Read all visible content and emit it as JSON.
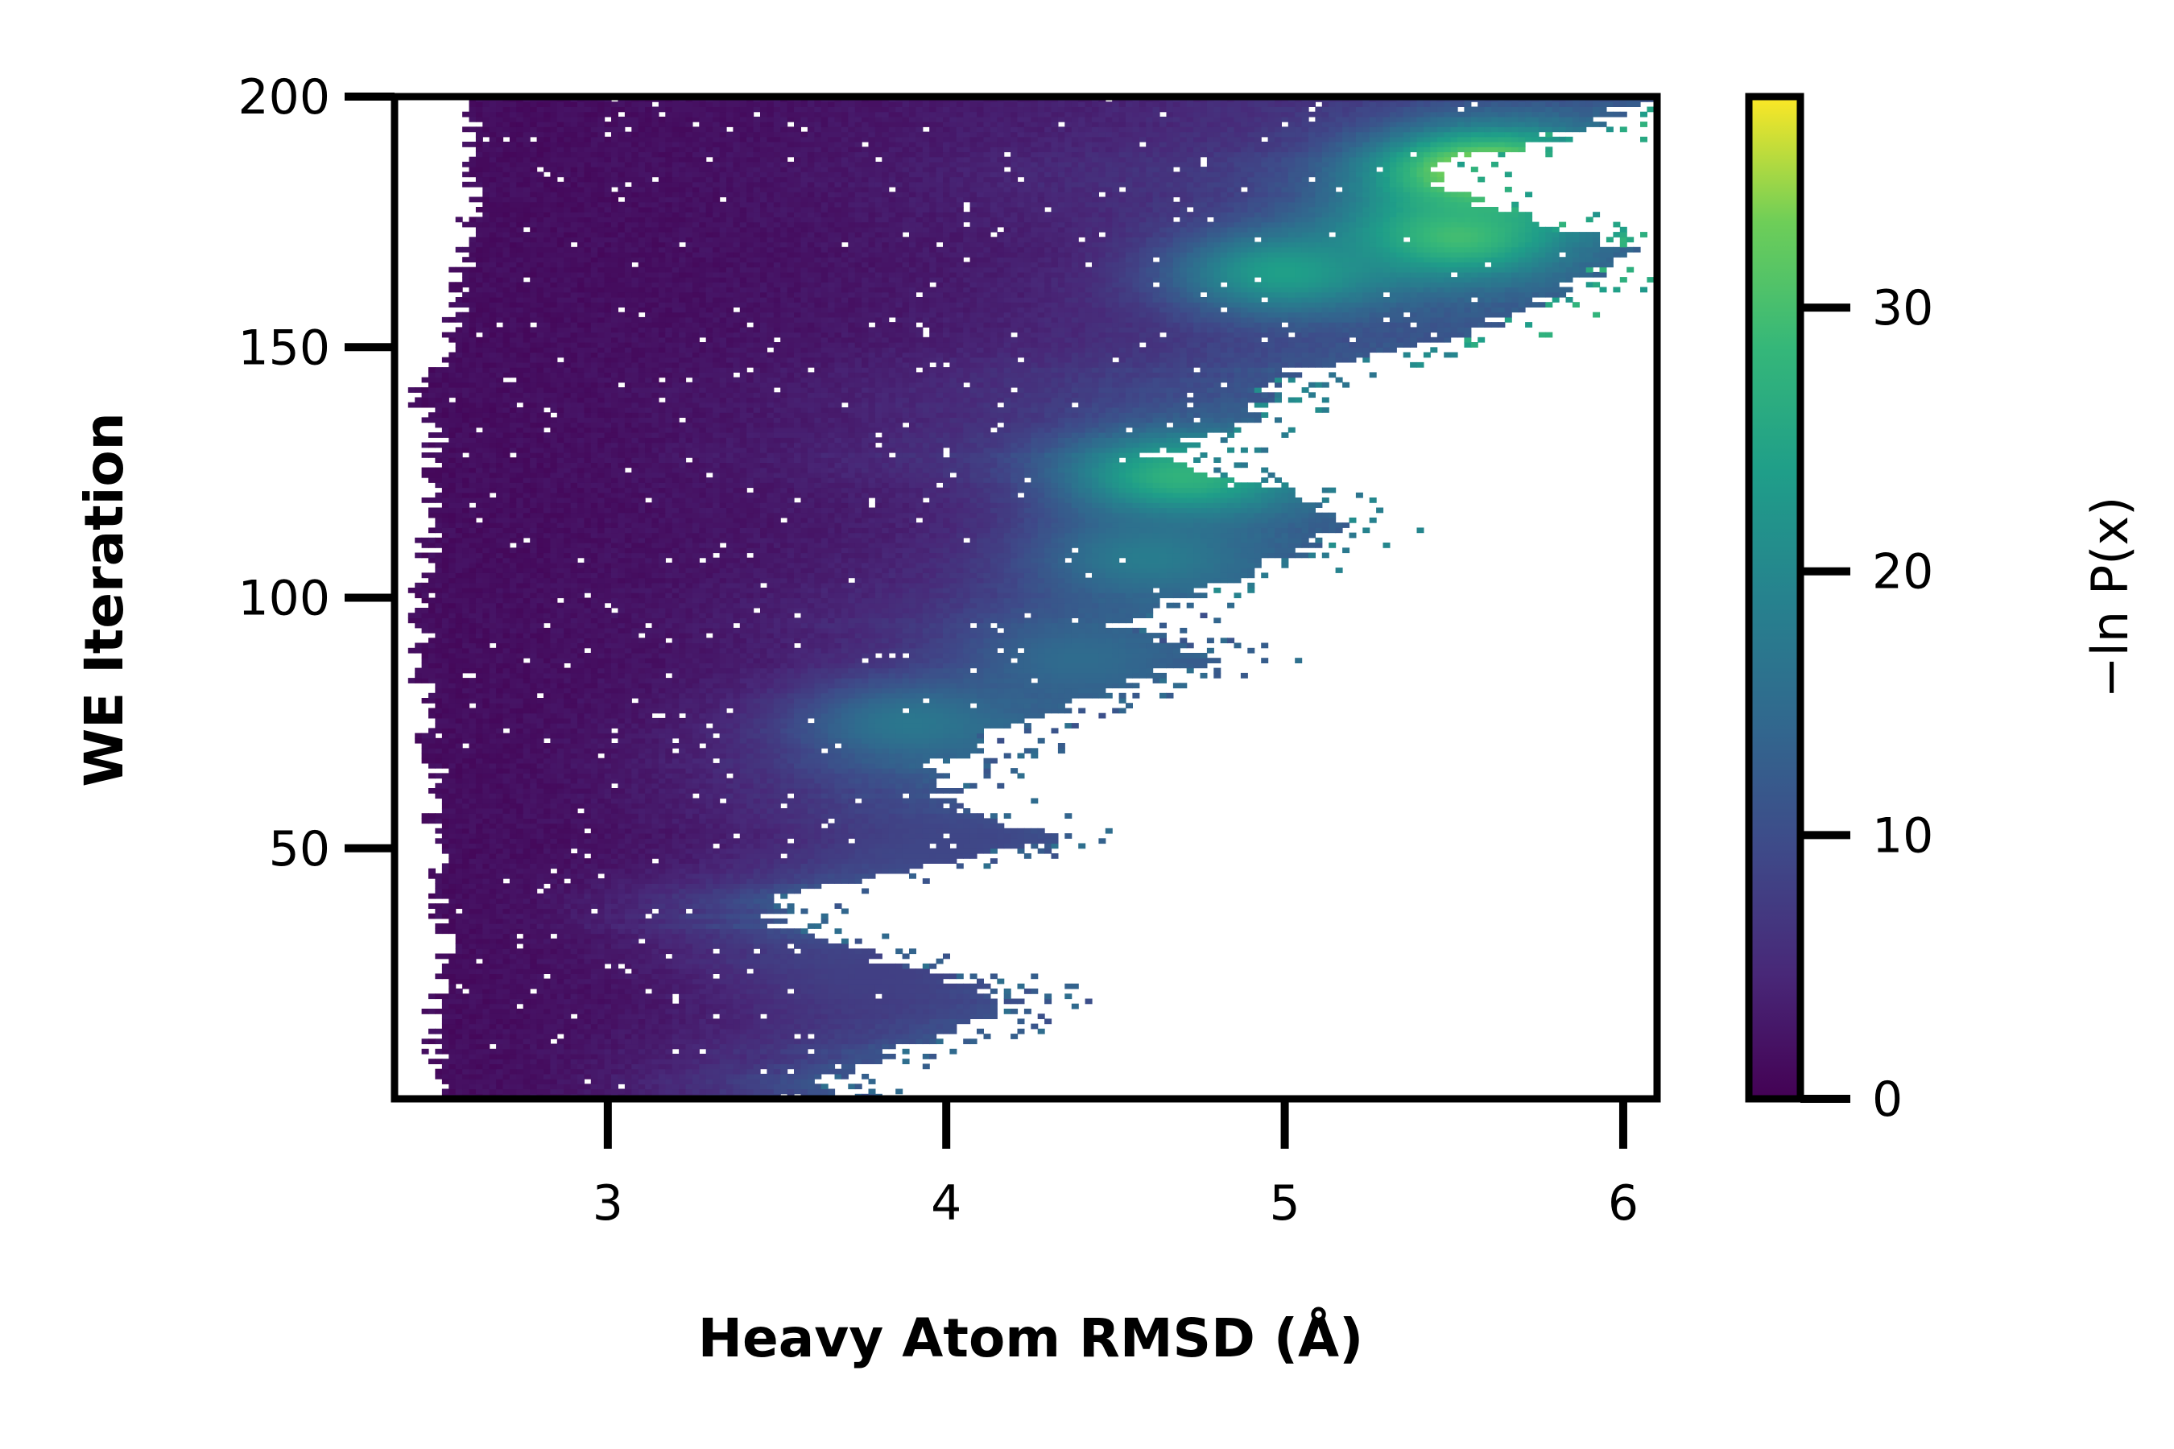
{
  "chart_data": {
    "type": "heatmap",
    "title": "",
    "xlabel": "Heavy Atom RMSD (Å)",
    "ylabel": "WE Iteration",
    "xlim": [
      2.37,
      6.1
    ],
    "ylim": [
      0,
      200
    ],
    "xticks": [
      3,
      4,
      5,
      6
    ],
    "xtick_labels": [
      "3",
      "4",
      "5",
      "6"
    ],
    "yticks": [
      50,
      100,
      150,
      200
    ],
    "ytick_labels": [
      "50",
      "100",
      "150",
      "200"
    ],
    "grid": false,
    "colormap": "viridis",
    "colorbar": {
      "label": "−ln P(x)",
      "range": [
        0,
        38
      ],
      "ticks": [
        0,
        10,
        20,
        30
      ],
      "tick_labels": [
        "0",
        "10",
        "20",
        "30"
      ]
    },
    "x_bin_width": 0.02,
    "y_bin_height": 1,
    "low_region_edge": [
      [
        0,
        2.55
      ],
      [
        10,
        2.48
      ],
      [
        20,
        2.5
      ],
      [
        30,
        2.52
      ],
      [
        40,
        2.5
      ],
      [
        60,
        2.48
      ],
      [
        80,
        2.45
      ],
      [
        100,
        2.45
      ],
      [
        120,
        2.48
      ],
      [
        135,
        2.5
      ],
      [
        140,
        2.4
      ],
      [
        145,
        2.5
      ],
      [
        160,
        2.55
      ],
      [
        180,
        2.6
      ],
      [
        200,
        2.6
      ]
    ],
    "high_region_edge": [
      [
        0,
        3.6
      ],
      [
        5,
        3.7
      ],
      [
        12,
        3.95
      ],
      [
        20,
        4.2
      ],
      [
        28,
        3.8
      ],
      [
        35,
        3.5
      ],
      [
        40,
        3.45
      ],
      [
        45,
        3.9
      ],
      [
        52,
        4.3
      ],
      [
        58,
        4.0
      ],
      [
        65,
        3.95
      ],
      [
        72,
        4.1
      ],
      [
        80,
        4.4
      ],
      [
        88,
        4.8
      ],
      [
        95,
        4.5
      ],
      [
        105,
        4.9
      ],
      [
        115,
        5.2
      ],
      [
        122,
        5.0
      ],
      [
        128,
        4.6
      ],
      [
        135,
        4.9
      ],
      [
        145,
        5.0
      ],
      [
        152,
        5.5
      ],
      [
        160,
        5.8
      ],
      [
        170,
        6.0
      ],
      [
        178,
        5.6
      ],
      [
        185,
        5.4
      ],
      [
        192,
        5.8
      ],
      [
        200,
        6.1
      ]
    ],
    "hotspots": [
      {
        "iteration": 185,
        "rmsd": 5.6,
        "value": 37
      },
      {
        "iteration": 172,
        "rmsd": 5.5,
        "value": 30
      },
      {
        "iteration": 165,
        "rmsd": 5.0,
        "value": 24
      },
      {
        "iteration": 124,
        "rmsd": 4.7,
        "value": 28
      },
      {
        "iteration": 108,
        "rmsd": 4.6,
        "value": 18
      },
      {
        "iteration": 88,
        "rmsd": 4.4,
        "value": 15
      },
      {
        "iteration": 75,
        "rmsd": 3.9,
        "value": 17
      },
      {
        "iteration": 50,
        "rmsd": 4.0,
        "value": 9
      },
      {
        "iteration": 25,
        "rmsd": 3.8,
        "value": 8
      }
    ]
  }
}
